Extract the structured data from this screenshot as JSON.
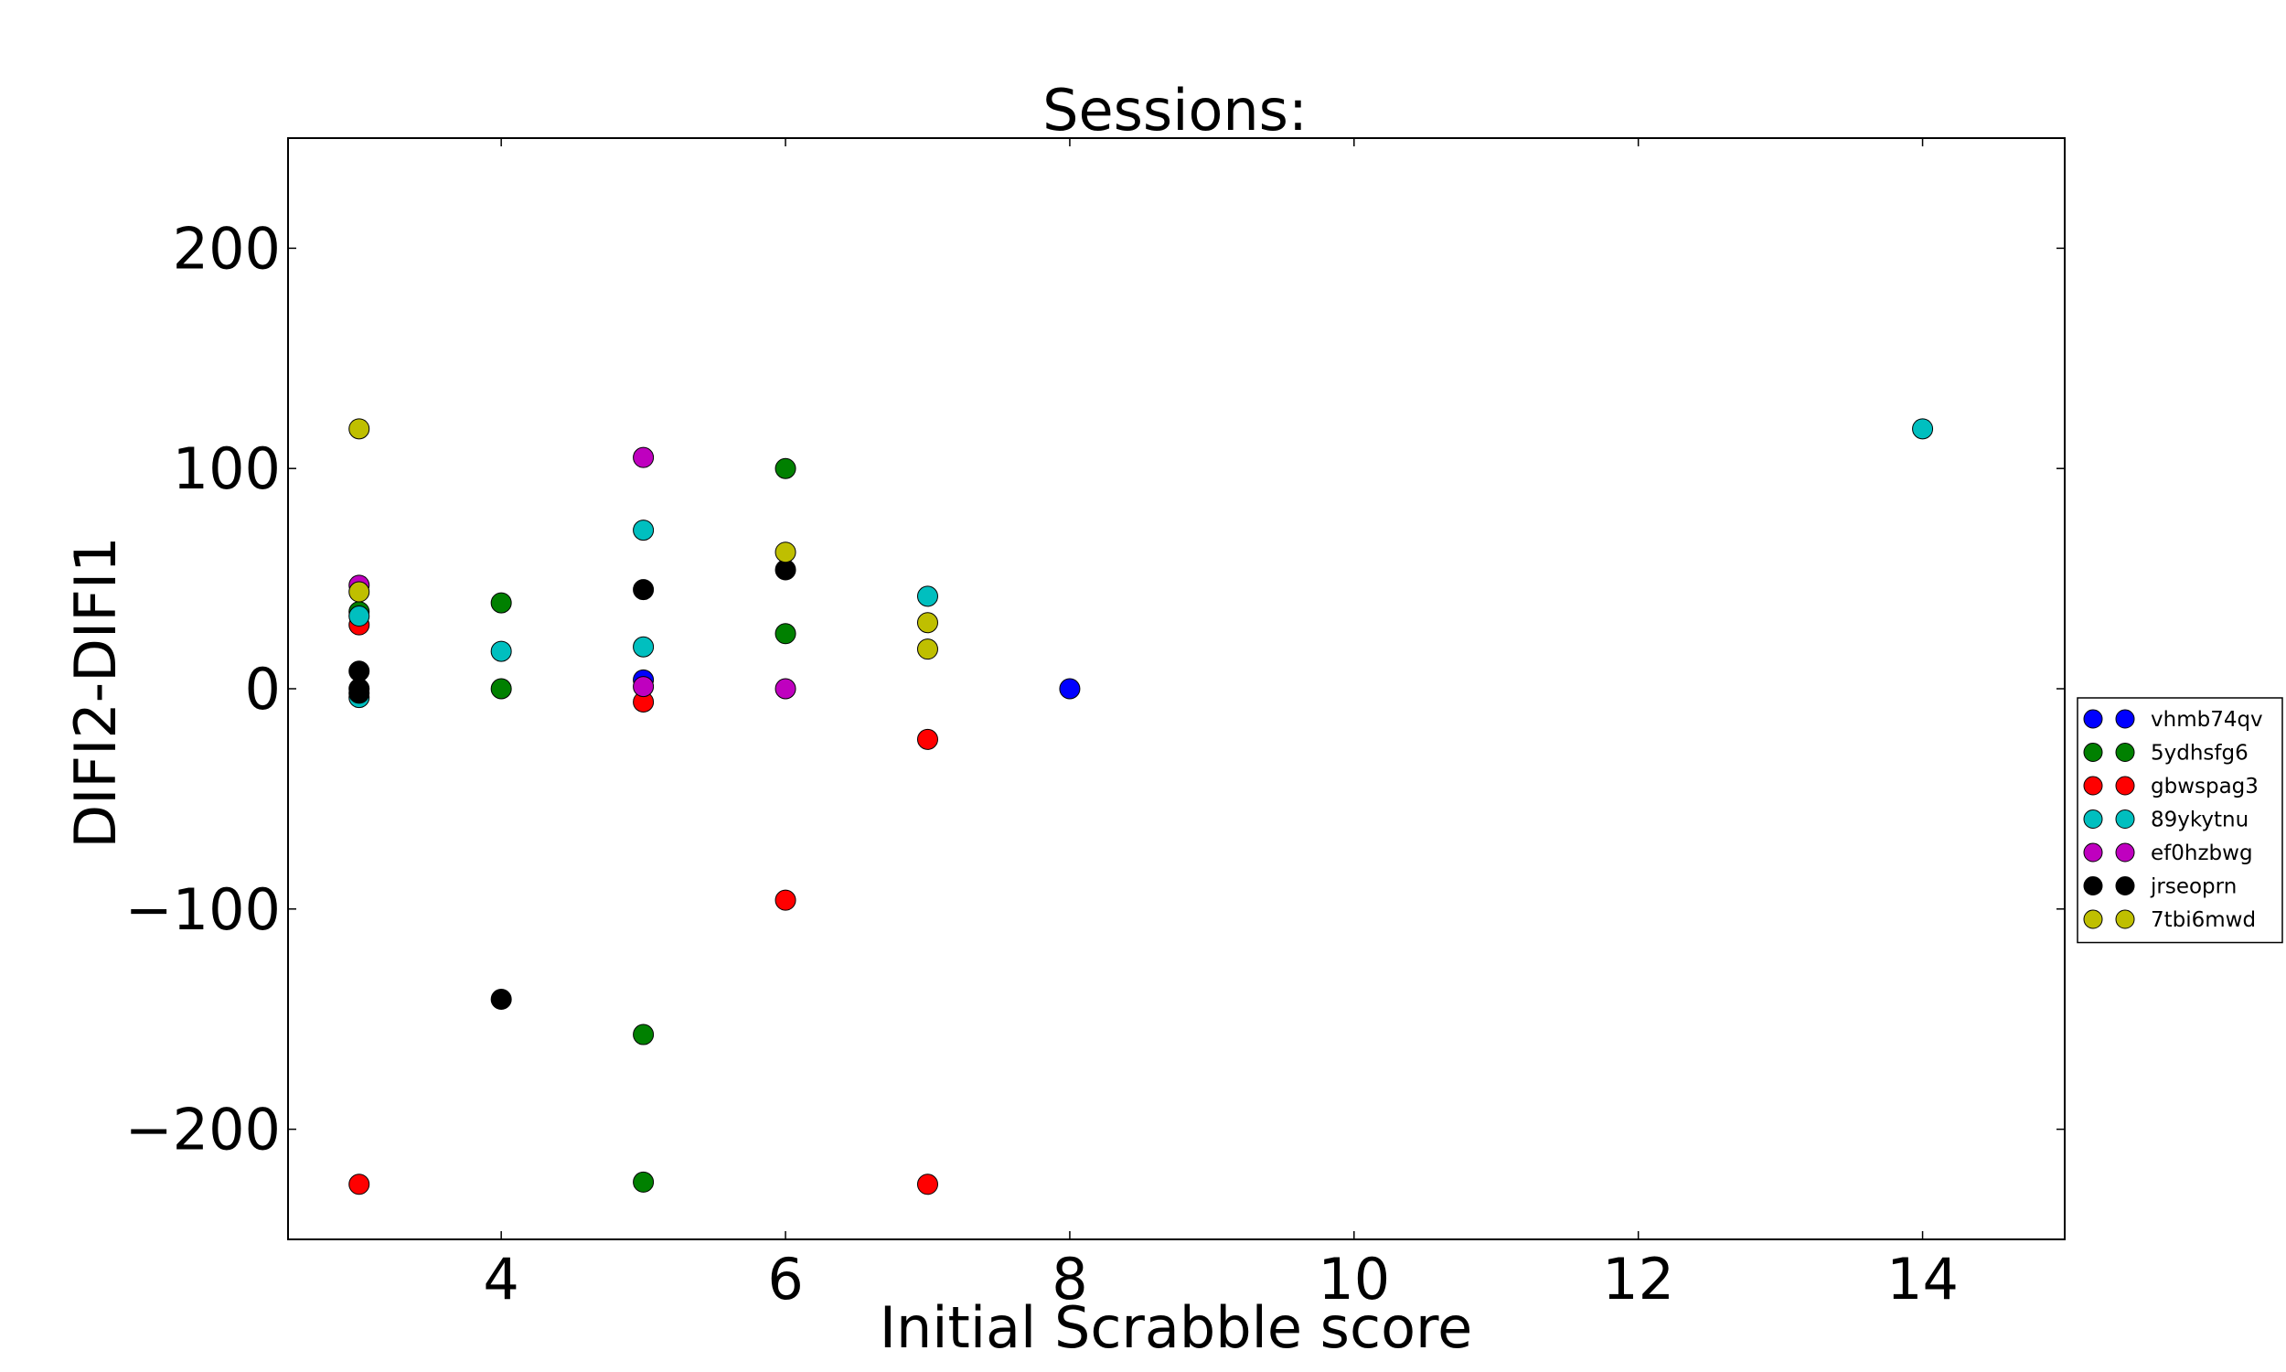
{
  "chart_data": {
    "type": "scatter",
    "title": "Sessions:",
    "xlabel": "Initial Scrabble score",
    "ylabel": "DIFI2-DIFI1",
    "xlim": [
      2.5,
      15
    ],
    "ylim": [
      -250,
      250
    ],
    "xticks": [
      4,
      6,
      8,
      10,
      12,
      14
    ],
    "xtick_labels": [
      "4",
      "6",
      "8",
      "10",
      "12",
      "14"
    ],
    "yticks": [
      -200,
      -100,
      0,
      100,
      200
    ],
    "ytick_labels": [
      "−200",
      "−100",
      "0",
      "100",
      "200"
    ],
    "grid": false,
    "legend_position": "right",
    "series": [
      {
        "name": "vhmb74qv",
        "color": "#0000ff",
        "points": [
          [
            5,
            4
          ],
          [
            8,
            0
          ]
        ]
      },
      {
        "name": "5ydhsfg6",
        "color": "#008000",
        "points": [
          [
            3,
            35
          ],
          [
            4,
            39
          ],
          [
            4,
            0
          ],
          [
            5,
            -157
          ],
          [
            5,
            -224
          ],
          [
            6,
            100
          ],
          [
            6,
            25
          ]
        ]
      },
      {
        "name": "gbwspag3",
        "color": "#ff0000",
        "points": [
          [
            3,
            29
          ],
          [
            3,
            -225
          ],
          [
            5,
            -6
          ],
          [
            6,
            -96
          ],
          [
            7,
            -23
          ],
          [
            7,
            -225
          ]
        ]
      },
      {
        "name": "89ykytnu",
        "color": "#00bfbf",
        "points": [
          [
            3,
            33
          ],
          [
            3,
            -4
          ],
          [
            4,
            17
          ],
          [
            5,
            72
          ],
          [
            5,
            19
          ],
          [
            7,
            42
          ],
          [
            14,
            118
          ]
        ]
      },
      {
        "name": "ef0hzbwg",
        "color": "#bf00bf",
        "points": [
          [
            3,
            47
          ],
          [
            5,
            105
          ],
          [
            5,
            1
          ],
          [
            6,
            0
          ]
        ]
      },
      {
        "name": "jrseoprn",
        "color": "#000000",
        "points": [
          [
            3,
            8
          ],
          [
            3,
            0
          ],
          [
            3,
            -2
          ],
          [
            4,
            -141
          ],
          [
            5,
            45
          ],
          [
            6,
            54
          ]
        ]
      },
      {
        "name": "7tbi6mwd",
        "color": "#bfbf00",
        "points": [
          [
            3,
            118
          ],
          [
            3,
            44
          ],
          [
            6,
            62
          ],
          [
            7,
            30
          ],
          [
            7,
            18
          ]
        ]
      }
    ]
  }
}
